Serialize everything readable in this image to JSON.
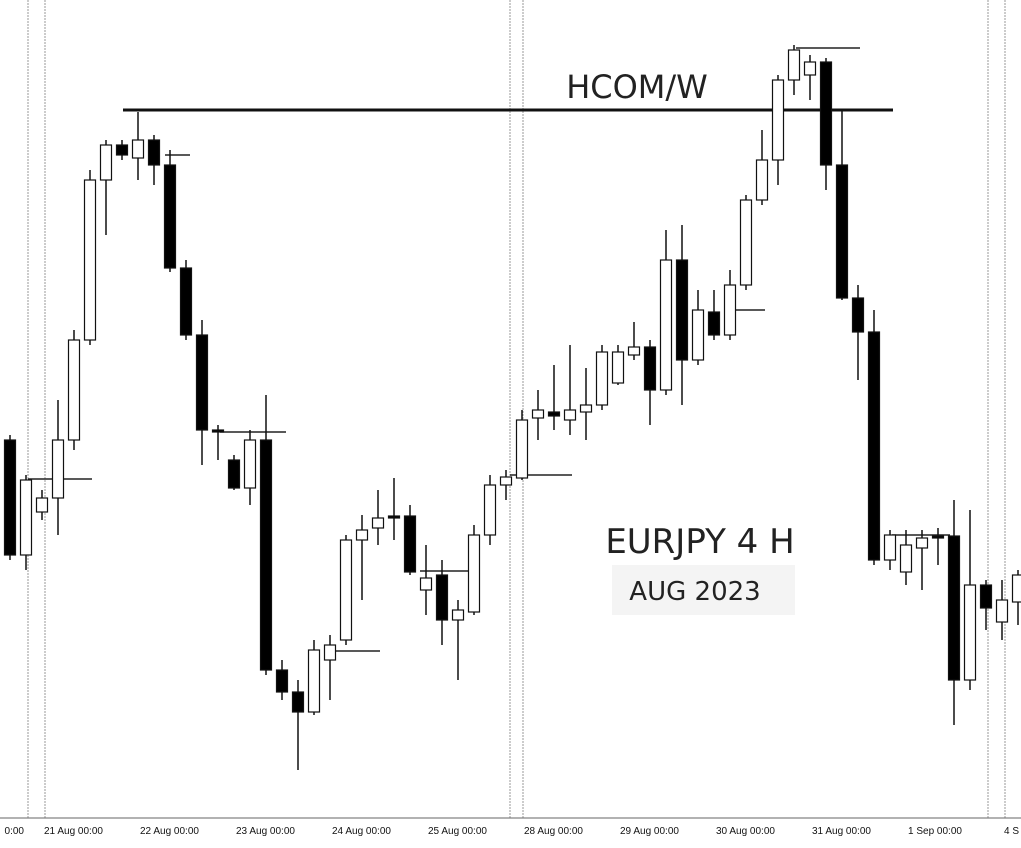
{
  "chart_data": {
    "type": "candlestick",
    "title": "EURJPY 4 H",
    "subtitle": "AUG 2023",
    "annotations": [
      "HCOM/W"
    ],
    "up_color": "#ffffff",
    "down_color": "#000000",
    "ylim": [
      0,
      848
    ],
    "categories": [
      "0:00",
      null,
      "21 Aug 00:00",
      null,
      null,
      null,
      null,
      null,
      "22 Aug 00:00",
      null,
      null,
      null,
      null,
      null,
      "23 Aug 00:00",
      null,
      null,
      null,
      null,
      null,
      "24 Aug 00:00",
      null,
      null,
      null,
      null,
      null,
      "25 Aug 00:00",
      null,
      null,
      null,
      null,
      null,
      "28 Aug 00:00",
      null,
      null,
      null,
      null,
      null,
      "29 Aug 00:00",
      null,
      null,
      null,
      null,
      null,
      "30 Aug 00:00",
      null,
      null,
      null,
      null,
      null,
      "31 Aug 00:00",
      null,
      null,
      null,
      null,
      null,
      "1 Sep 00:00",
      null,
      null,
      null,
      null,
      null,
      "4 S",
      null
    ],
    "open": [
      408,
      293,
      336,
      350,
      408,
      508,
      668,
      703,
      690,
      708,
      683,
      580,
      513,
      418,
      388,
      360,
      408,
      178,
      156,
      136,
      188,
      208,
      308,
      320,
      332,
      332,
      258,
      273,
      228,
      236,
      313,
      363,
      370,
      430,
      436,
      428,
      436,
      443,
      465,
      493,
      501,
      458,
      588,
      488,
      536,
      513,
      563,
      648,
      688,
      768,
      773,
      786,
      683,
      550,
      516,
      288,
      276,
      300,
      312,
      312,
      168,
      263,
      226,
      246
    ],
    "high": [
      413,
      373,
      358,
      448,
      518,
      678,
      708,
      708,
      736,
      713,
      698,
      588,
      528,
      423,
      393,
      418,
      453,
      188,
      168,
      208,
      213,
      313,
      333,
      358,
      370,
      343,
      303,
      288,
      248,
      323,
      373,
      378,
      438,
      458,
      483,
      503,
      480,
      503,
      503,
      526,
      508,
      618,
      623,
      558,
      558,
      578,
      653,
      718,
      773,
      803,
      793,
      790,
      738,
      563,
      538,
      318,
      318,
      318,
      320,
      348,
      338,
      268,
      268,
      278
    ],
    "low": [
      288,
      278,
      328,
      313,
      398,
      503,
      613,
      688,
      668,
      663,
      576,
      508,
      383,
      388,
      358,
      343,
      173,
      148,
      78,
      133,
      148,
      203,
      248,
      303,
      308,
      273,
      233,
      203,
      168,
      233,
      303,
      348,
      368,
      408,
      418,
      413,
      408,
      438,
      463,
      488,
      423,
      453,
      443,
      483,
      508,
      508,
      558,
      643,
      663,
      753,
      748,
      658,
      548,
      468,
      283,
      278,
      263,
      258,
      283,
      123,
      158,
      218,
      208,
      223
    ],
    "close": [
      293,
      368,
      350,
      408,
      508,
      668,
      703,
      693,
      708,
      683,
      580,
      513,
      418,
      416,
      360,
      408,
      178,
      156,
      136,
      198,
      203,
      308,
      318,
      330,
      330,
      276,
      270,
      228,
      238,
      313,
      363,
      371,
      428,
      438,
      432,
      438,
      443,
      496,
      496,
      501,
      458,
      588,
      488,
      538,
      513,
      563,
      648,
      688,
      768,
      798,
      786,
      683,
      550,
      516,
      288,
      313,
      303,
      310,
      310,
      168,
      263,
      240,
      248,
      273
    ]
  }
}
